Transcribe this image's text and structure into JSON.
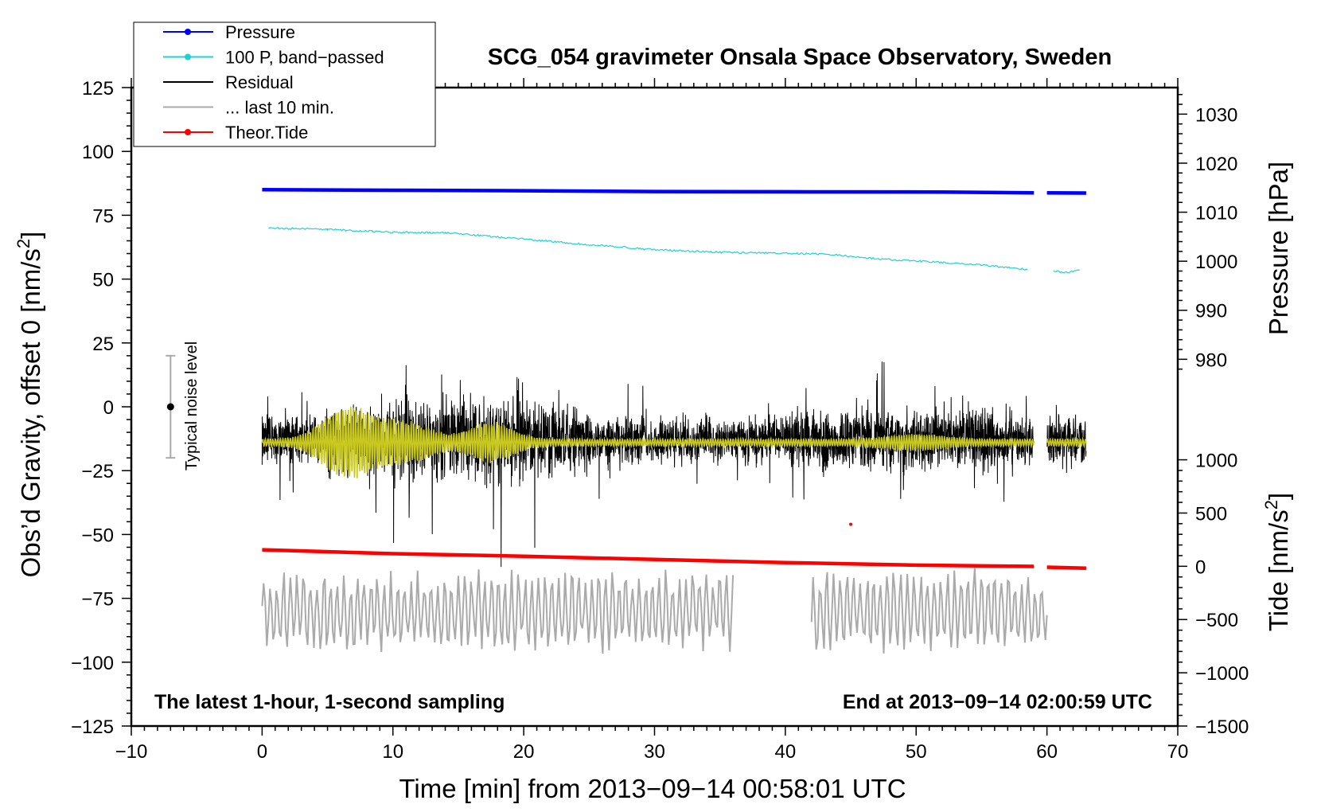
{
  "chart_data": {
    "type": "line",
    "title": "SCG_054 gravimeter Onsala Space Observatory, Sweden",
    "xlabel": "Time [min] from 2013−09−14 00:58:01 UTC",
    "ylabel": "Obs’d Gravity, offset 0 [nm/s",
    "ylabel_sup": "2",
    "ylabel_close": "]",
    "y2label": "Pressure [hPa]",
    "y3label": "Tide [nm/s",
    "y3label_sup": "2",
    "y3label_close": "]",
    "xlim": [
      -10,
      70
    ],
    "ylim": [
      -125,
      125
    ],
    "x_ticks": [
      -10,
      0,
      10,
      20,
      30,
      40,
      50,
      60,
      70
    ],
    "x_tick_labels": [
      "−10",
      "0",
      "10",
      "20",
      "30",
      "40",
      "50",
      "60",
      "70"
    ],
    "y_ticks": [
      125,
      100,
      75,
      50,
      25,
      0,
      -25,
      -50,
      -75,
      -100,
      -125
    ],
    "y_tick_labels": [
      "125",
      "100",
      "75",
      "50",
      "25",
      "0",
      "−25",
      "−50",
      "−75",
      "−100",
      "−125"
    ],
    "pressure_axis": {
      "ticks": [
        1030,
        1020,
        1010,
        1000,
        990,
        980
      ],
      "tick_labels": [
        "1030",
        "1020",
        "1010",
        "1000",
        "990",
        "980"
      ],
      "ref_value": 1000,
      "ref_gravity": 57,
      "gravity_per_hpa": 1.92
    },
    "tide_axis": {
      "ticks": [
        1000,
        500,
        0,
        -500,
        -1000,
        -1500
      ],
      "tick_labels": [
        "1000",
        "500",
        "0",
        "−500",
        "−1000",
        "−1500"
      ],
      "ref_value": -1500,
      "ref_gravity": -125,
      "gravity_per_unit": 0.0417
    },
    "annotation_left": "The latest 1-hour, 1-second sampling",
    "annotation_right": "End at 2013−09−14 02:00:59 UTC",
    "noise_label": "Typical noise level",
    "noise_bar": {
      "x": -7,
      "center": 0,
      "half_range": 20
    },
    "legend": [
      {
        "label": "Pressure",
        "color": "#0000ff",
        "marker": true
      },
      {
        "label": "100 P, band−passed",
        "color": "#22d0d0",
        "marker": true
      },
      {
        "label": "Residual",
        "color": "#000000",
        "marker": false
      },
      {
        "label": "... last 10 min.",
        "color": "#aaaaaa",
        "marker": false
      },
      {
        "label": "Theor.Tide",
        "color": "#ff0000",
        "marker": true
      }
    ],
    "series": [
      {
        "name": "Pressure",
        "color": "#0000ff",
        "segments": [
          [
            [
              0,
              85
            ],
            [
              10,
              84.8
            ],
            [
              20,
              84.6
            ],
            [
              30,
              84.3
            ],
            [
              40,
              84.2
            ],
            [
              52,
              84.1
            ],
            [
              59,
              83.8
            ]
          ],
          [
            [
              60,
              83.8
            ],
            [
              63,
              83.7
            ]
          ]
        ]
      },
      {
        "name": "100 P, band−passed",
        "color": "#22d0d0",
        "segments": [
          [
            [
              0.5,
              70
            ],
            [
              5,
              69.5
            ],
            [
              10,
              68.3
            ],
            [
              14,
              68.2
            ],
            [
              18,
              66.5
            ],
            [
              25,
              63.5
            ],
            [
              30,
              61.5
            ],
            [
              35,
              60.5
            ],
            [
              43,
              59.8
            ],
            [
              47,
              58
            ],
            [
              51,
              56.8
            ],
            [
              55,
              55.5
            ],
            [
              58.5,
              53.8
            ]
          ],
          [
            [
              60.5,
              53.2
            ],
            [
              61.5,
              52.5
            ],
            [
              62.5,
              53.5
            ]
          ]
        ]
      },
      {
        "name": "Theor.Tide",
        "color": "#ff0000",
        "segments": [
          [
            [
              0,
              -56
            ],
            [
              10,
              -57.5
            ],
            [
              20,
              -58.5
            ],
            [
              30,
              -59.8
            ],
            [
              40,
              -61
            ],
            [
              50,
              -62
            ],
            [
              59,
              -62.5
            ]
          ],
          [
            [
              60,
              -62.8
            ],
            [
              63,
              -63.2
            ]
          ]
        ],
        "outlier": [
          45,
          -46
        ]
      },
      {
        "name": "Residual",
        "color": "#000000",
        "segments_x": [
          [
            0,
            59
          ],
          [
            60,
            63
          ]
        ],
        "mean": -13
      },
      {
        "name": "Residual smoothed",
        "color": "#c8c820",
        "mean": -14
      },
      {
        "name": "... last 10 min.",
        "color": "#aaaaaa",
        "segments_x": [
          [
            0,
            36
          ],
          [
            42,
            60
          ]
        ],
        "mean": -80
      }
    ]
  }
}
